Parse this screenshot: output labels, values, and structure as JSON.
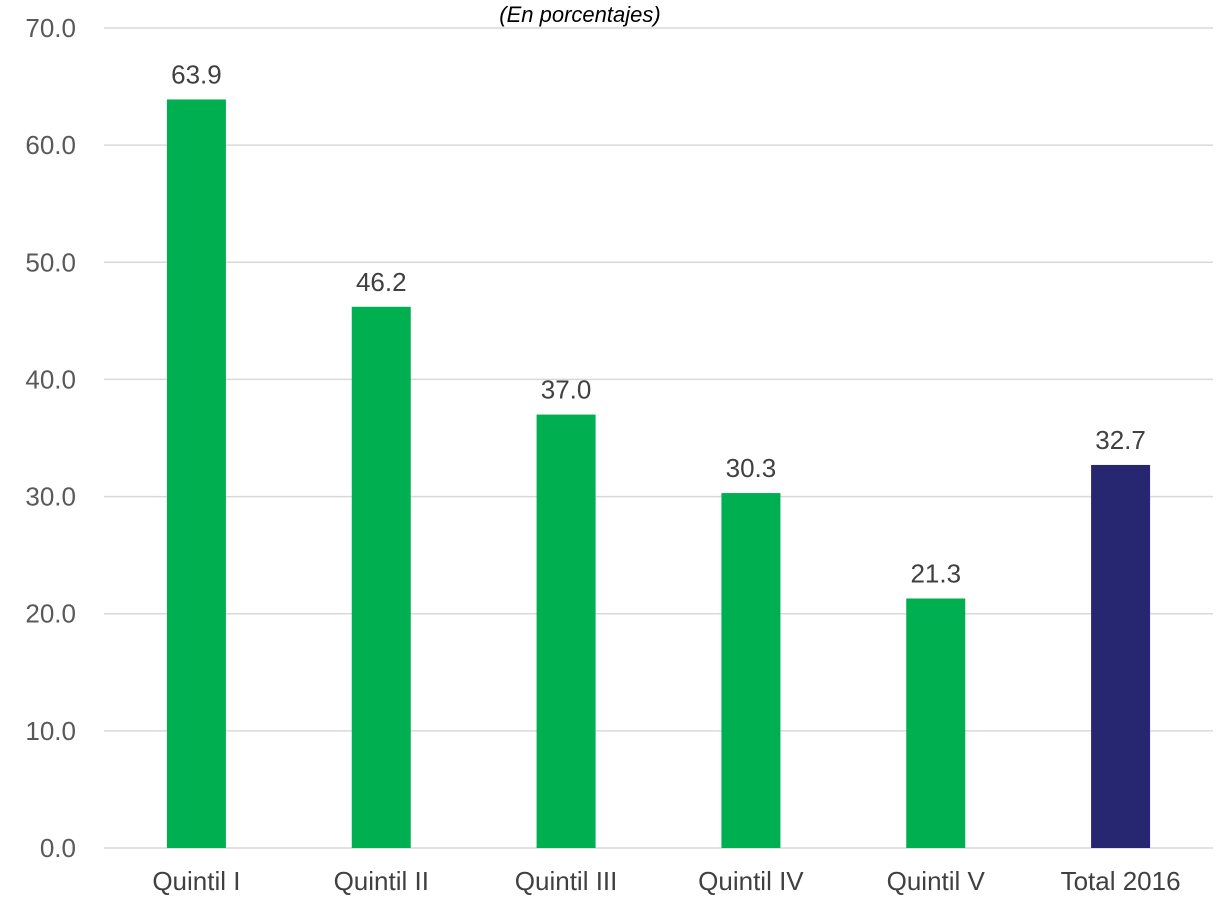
{
  "chart_data": {
    "type": "bar",
    "title": "",
    "subtitle": "(En porcentajes)",
    "xlabel": "",
    "ylabel": "",
    "categories": [
      "Quintil I",
      "Quintil II",
      "Quintil III",
      "Quintil IV",
      "Quintil V",
      "Total 2016"
    ],
    "values": [
      63.9,
      46.2,
      37.0,
      30.3,
      21.3,
      32.7
    ],
    "data_labels": [
      "63.9",
      "46.2",
      "37.0",
      "30.3",
      "21.3",
      "32.7"
    ],
    "bar_colors": [
      "#00b050",
      "#00b050",
      "#00b050",
      "#00b050",
      "#00b050",
      "#262671"
    ],
    "ylim": [
      0,
      70
    ],
    "yticks": [
      0,
      10,
      20,
      30,
      40,
      50,
      60,
      70
    ],
    "ytick_labels": [
      "0.0",
      "10.0",
      "20.0",
      "30.0",
      "40.0",
      "50.0",
      "60.0",
      "70.0"
    ],
    "grid": true,
    "legend": "none"
  }
}
